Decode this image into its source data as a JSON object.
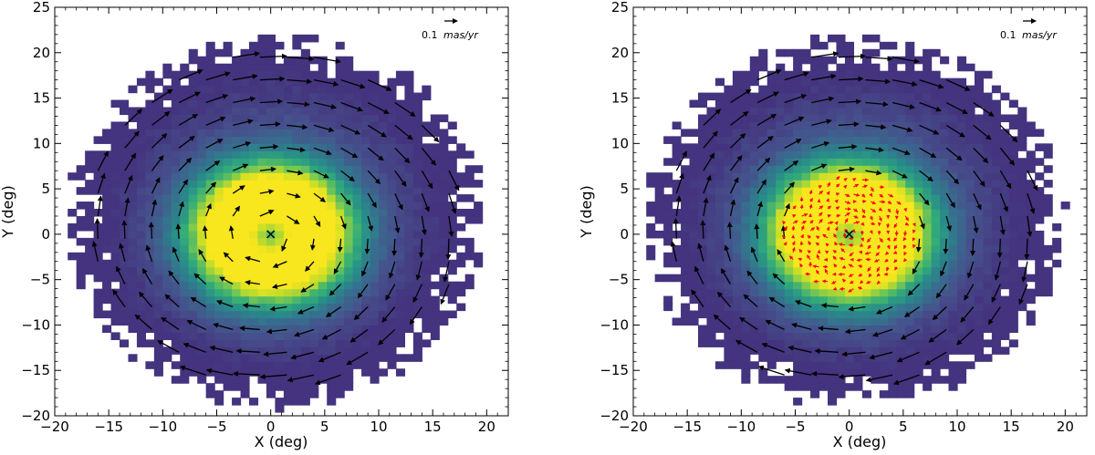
{
  "colors": {
    "density_low": "#44357e",
    "density_mid": "#2a8c8a",
    "density_high": "#f5e51c",
    "arrow": "#000000",
    "arrow_red": "#ff0000",
    "center_marker": "#000000"
  },
  "chart_data": [
    {
      "type": "scatter",
      "subtype": "density-histogram-with-proper-motion-vectors",
      "xlabel": "X (deg)",
      "ylabel": "Y (deg)",
      "xlim": [
        -20,
        22
      ],
      "ylim": [
        -20,
        25
      ],
      "xticks": [
        "−20",
        "−15",
        "−10",
        "−5",
        "0",
        "5",
        "10",
        "15",
        "20"
      ],
      "yticks": [
        "−20",
        "−15",
        "−10",
        "−5",
        "0",
        "5",
        "10",
        "15",
        "20",
        "25"
      ],
      "scale_text": "0.1",
      "scale_unit": "mas/yr",
      "scale_value_masyr": 0.1,
      "center_marker": [
        0,
        0
      ],
      "vector_field": "clockwise rotation about the center with outward motion toward the lower-right",
      "red_vectors_region": null,
      "grid": false
    },
    {
      "type": "scatter",
      "subtype": "density-histogram-with-proper-motion-vectors",
      "xlabel": "X (deg)",
      "ylabel": "Y (deg)",
      "xlim": [
        -20,
        22
      ],
      "ylim": [
        -20,
        25
      ],
      "xticks": [
        "−20",
        "−15",
        "−10",
        "−5",
        "0",
        "5",
        "10",
        "15",
        "20"
      ],
      "yticks": [
        "−20",
        "−15",
        "−10",
        "−5",
        "0",
        "5",
        "10",
        "15",
        "20",
        "25"
      ],
      "scale_text": "0.1",
      "scale_unit": "mas/yr",
      "scale_value_masyr": 0.1,
      "center_marker": [
        0,
        0
      ],
      "vector_field": "clockwise rotation about the center; small red vectors in the inner region",
      "red_vectors_region": [
        [
          -6,
          6
        ],
        [
          -6,
          6
        ]
      ],
      "grid": false
    }
  ]
}
